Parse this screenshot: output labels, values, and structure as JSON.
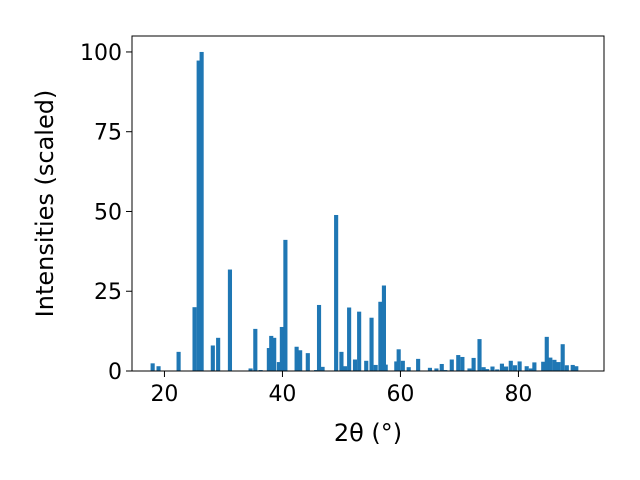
{
  "chart_data": {
    "type": "bar",
    "title": "",
    "xlabel": "2θ (°)",
    "ylabel": "Intensities (scaled)",
    "xlim": [
      14.5,
      94.5
    ],
    "ylim": [
      0,
      105
    ],
    "xticks": [
      20,
      40,
      60,
      80
    ],
    "yticks": [
      0,
      25,
      50,
      75,
      100
    ],
    "grid": false,
    "legend": "none",
    "bar_color": "#1f77b4",
    "bar_width": 0.7,
    "x": [
      18.0,
      19.0,
      22.4,
      25.1,
      25.8,
      26.3,
      28.2,
      29.1,
      31.1,
      34.6,
      35.4,
      36.3,
      37.7,
      38.1,
      38.6,
      39.4,
      39.9,
      40.5,
      42.4,
      43.0,
      44.3,
      45.7,
      46.2,
      46.8,
      49.1,
      50.0,
      50.6,
      51.3,
      52.3,
      53.0,
      54.2,
      55.1,
      55.8,
      56.6,
      57.2,
      57.5,
      59.3,
      59.7,
      60.4,
      61.4,
      63.0,
      65.0,
      66.1,
      67.0,
      67.6,
      68.7,
      69.8,
      70.5,
      71.7,
      72.4,
      73.4,
      74.1,
      74.7,
      75.6,
      76.4,
      77.2,
      77.9,
      78.7,
      79.4,
      80.2,
      81.4,
      82.1,
      82.7,
      84.2,
      84.8,
      85.4,
      86.1,
      86.8,
      87.5,
      88.2,
      89.2,
      89.8
    ],
    "values": [
      2.4,
      1.5,
      6.0,
      20.0,
      97.3,
      100.0,
      8.0,
      10.4,
      31.8,
      0.8,
      13.2,
      0.3,
      7.2,
      11.0,
      10.4,
      2.8,
      13.8,
      41.1,
      7.6,
      6.5,
      5.6,
      0.3,
      20.7,
      1.3,
      48.9,
      6.0,
      1.5,
      19.9,
      3.6,
      18.6,
      3.2,
      16.7,
      1.9,
      21.7,
      26.8,
      2.0,
      3.0,
      6.8,
      3.2,
      1.2,
      3.8,
      1.0,
      0.8,
      2.2,
      0.3,
      3.6,
      5.0,
      4.4,
      0.8,
      4.1,
      10.0,
      1.2,
      0.6,
      1.4,
      0.5,
      2.3,
      1.4,
      3.2,
      1.8,
      3.0,
      1.5,
      0.8,
      2.7,
      2.9,
      10.7,
      4.2,
      3.5,
      2.8,
      8.4,
      1.8,
      1.9,
      1.5
    ]
  }
}
